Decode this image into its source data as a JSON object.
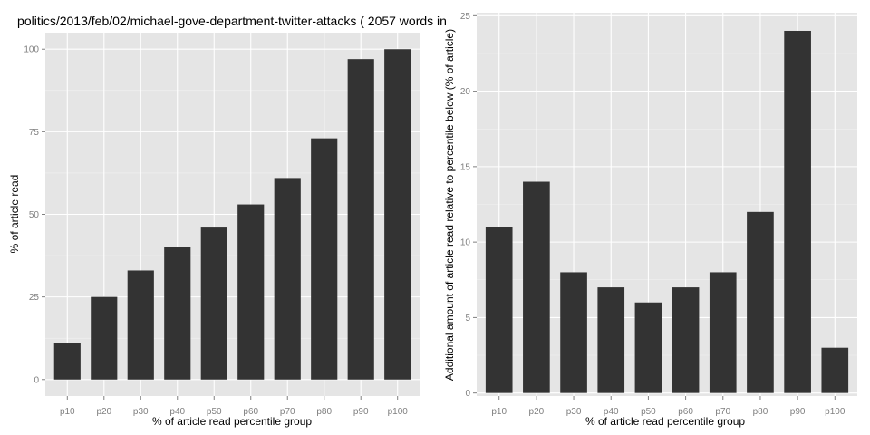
{
  "chart_data": [
    {
      "type": "bar",
      "title": "politics/2013/feb/02/michael-gove-department-twitter-attacks ( 2057 words in",
      "xlabel": "% of article read percentile group",
      "ylabel": "% of article read",
      "categories": [
        "p10",
        "p20",
        "p30",
        "p40",
        "p50",
        "p60",
        "p70",
        "p80",
        "p90",
        "p100"
      ],
      "values": [
        11,
        25,
        33,
        40,
        46,
        53,
        61,
        73,
        97,
        100
      ],
      "yticks": [
        0,
        25,
        50,
        75,
        100
      ],
      "ylim": [
        -5,
        105
      ],
      "grid": true,
      "bar_color": "#333333",
      "panel_color": "#e5e5e5"
    },
    {
      "type": "bar",
      "title": "",
      "xlabel": "% of article read percentile group",
      "ylabel": "Additional amount of article read relative to percentile below (% of article)",
      "categories": [
        "p10",
        "p20",
        "p30",
        "p40",
        "p50",
        "p60",
        "p70",
        "p80",
        "p90",
        "p100"
      ],
      "values": [
        11,
        14,
        8,
        7,
        6,
        7,
        8,
        12,
        24,
        3
      ],
      "yticks": [
        0,
        5,
        10,
        15,
        20,
        25
      ],
      "ylim": [
        -0.2,
        25.2
      ],
      "grid": true,
      "bar_color": "#333333",
      "panel_color": "#e5e5e5"
    }
  ]
}
